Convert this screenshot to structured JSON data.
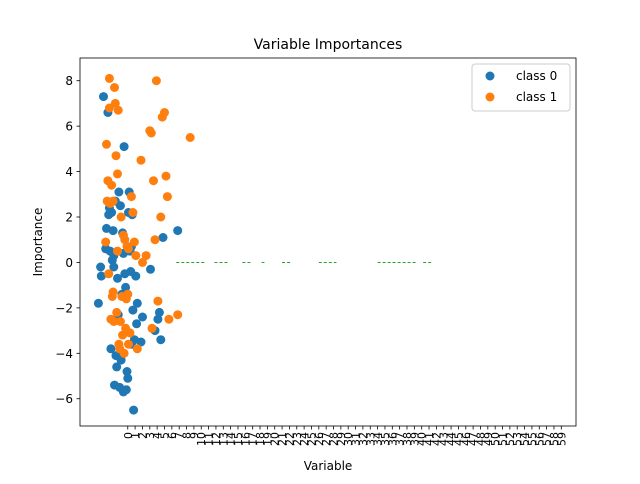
{
  "chart_data": {
    "type": "scatter",
    "title": "Variable Importances",
    "xlabel": "Variable",
    "ylabel": "Importance",
    "xlim": [
      -6.5,
      61
    ],
    "ylim": [
      -7.2,
      9.0
    ],
    "yticks": [
      -6,
      -4,
      -2,
      0,
      2,
      4,
      6,
      8
    ],
    "xticks": [
      "0",
      "1",
      "2",
      "3",
      "4",
      "5",
      "6",
      "7",
      "8",
      "9",
      "10",
      "11",
      "12",
      "13",
      "14",
      "15",
      "16",
      "17",
      "18",
      "19",
      "20",
      "21",
      "22",
      "23",
      "24",
      "25",
      "26",
      "27",
      "28",
      "29",
      "30",
      "31",
      "32",
      "33",
      "34",
      "35",
      "36",
      "37",
      "38",
      "39",
      "40",
      "41",
      "42",
      "43",
      "44",
      "45",
      "46",
      "47",
      "48",
      "49",
      "50",
      "51",
      "52",
      "53",
      "54",
      "55",
      "56",
      "57",
      "58",
      "59"
    ],
    "legend_position": "top-right",
    "colors": {
      "class0": "#1f77b4",
      "class1": "#ff7f0e",
      "zero_marks": "#2ca02c"
    },
    "series": [
      {
        "name": "class 0",
        "points": [
          [
            -4.0,
            -1.8
          ],
          [
            -3.7,
            -0.2
          ],
          [
            -3.6,
            -0.6
          ],
          [
            -3.3,
            7.3
          ],
          [
            -3.0,
            0.6
          ],
          [
            -2.9,
            1.5
          ],
          [
            -2.7,
            6.6
          ],
          [
            -2.6,
            2.1
          ],
          [
            -2.5,
            2.4
          ],
          [
            -2.3,
            -3.8
          ],
          [
            -2.2,
            2.2
          ],
          [
            -2.1,
            0.1
          ],
          [
            -2.0,
            1.4
          ],
          [
            -1.9,
            0.3
          ],
          [
            -1.8,
            -5.4
          ],
          [
            -1.7,
            2.7
          ],
          [
            -1.6,
            -4.1
          ],
          [
            -1.5,
            -4.6
          ],
          [
            -1.4,
            -0.7
          ],
          [
            -1.3,
            -2.3
          ],
          [
            -1.2,
            3.1
          ],
          [
            -1.1,
            -5.5
          ],
          [
            -1.0,
            2.5
          ],
          [
            -0.9,
            -4.3
          ],
          [
            -0.8,
            -1.4
          ],
          [
            -0.7,
            1.3
          ],
          [
            -0.6,
            -5.7
          ],
          [
            -0.5,
            5.1
          ],
          [
            -0.4,
            -0.5
          ],
          [
            -0.3,
            -1.1
          ],
          [
            -0.2,
            -5.6
          ],
          [
            -0.1,
            -4.8
          ],
          [
            0.0,
            -5.1
          ],
          [
            0.1,
            2.2
          ],
          [
            0.2,
            3.1
          ],
          [
            0.3,
            0.5
          ],
          [
            0.4,
            -0.4
          ],
          [
            0.5,
            -3.6
          ],
          [
            0.6,
            2.1
          ],
          [
            0.7,
            -2.1
          ],
          [
            0.8,
            -6.5
          ],
          [
            0.9,
            -3.4
          ],
          [
            1.1,
            -0.6
          ],
          [
            1.2,
            -2.7
          ],
          [
            1.3,
            -1.8
          ],
          [
            1.8,
            -3.5
          ],
          [
            2.0,
            -2.4
          ],
          [
            3.1,
            -0.3
          ],
          [
            3.7,
            -3.0
          ],
          [
            4.1,
            -2.5
          ],
          [
            4.3,
            -2.2
          ],
          [
            4.5,
            -3.4
          ],
          [
            4.8,
            1.1
          ],
          [
            6.8,
            1.4
          ],
          [
            -2.4,
            0.5
          ],
          [
            -1.9,
            -0.2
          ],
          [
            0.5,
            0.7
          ],
          [
            -0.6,
            0.4
          ]
        ]
      },
      {
        "name": "class 1",
        "points": [
          [
            -3.0,
            0.9
          ],
          [
            -2.9,
            5.2
          ],
          [
            -2.8,
            2.7
          ],
          [
            -2.7,
            3.6
          ],
          [
            -2.6,
            -0.5
          ],
          [
            -2.5,
            6.8
          ],
          [
            -2.5,
            8.1
          ],
          [
            -2.4,
            2.6
          ],
          [
            -2.3,
            -2.5
          ],
          [
            -2.2,
            3.4
          ],
          [
            -2.1,
            -1.5
          ],
          [
            -2.0,
            -1.3
          ],
          [
            -1.9,
            -2.6
          ],
          [
            -1.8,
            7.7
          ],
          [
            -1.7,
            7.0
          ],
          [
            -1.6,
            4.7
          ],
          [
            -1.5,
            -2.2
          ],
          [
            -1.4,
            3.9
          ],
          [
            -1.3,
            6.7
          ],
          [
            -1.2,
            -3.6
          ],
          [
            -1.1,
            -3.8
          ],
          [
            -1.0,
            -2.6
          ],
          [
            -0.9,
            2.0
          ],
          [
            -0.8,
            -1.5
          ],
          [
            -0.7,
            -3.2
          ],
          [
            -0.6,
            1.2
          ],
          [
            -0.5,
            -4.0
          ],
          [
            -0.4,
            1.0
          ],
          [
            -0.3,
            -2.9
          ],
          [
            -0.2,
            -1.6
          ],
          [
            -0.1,
            0.7
          ],
          [
            0.0,
            -1.4
          ],
          [
            0.1,
            -3.6
          ],
          [
            0.3,
            -3.1
          ],
          [
            0.5,
            2.9
          ],
          [
            0.7,
            2.2
          ],
          [
            0.9,
            0.9
          ],
          [
            1.1,
            0.3
          ],
          [
            1.3,
            -3.8
          ],
          [
            1.8,
            4.5
          ],
          [
            2.0,
            0.0
          ],
          [
            2.5,
            0.3
          ],
          [
            3.0,
            5.8
          ],
          [
            3.2,
            5.7
          ],
          [
            3.3,
            -2.9
          ],
          [
            3.5,
            3.6
          ],
          [
            3.7,
            1.0
          ],
          [
            3.9,
            8.0
          ],
          [
            4.1,
            -1.7
          ],
          [
            4.5,
            2.0
          ],
          [
            4.7,
            6.4
          ],
          [
            5.0,
            6.6
          ],
          [
            5.2,
            3.8
          ],
          [
            5.4,
            2.9
          ],
          [
            5.6,
            -2.5
          ],
          [
            6.8,
            -2.3
          ],
          [
            8.5,
            5.5
          ],
          [
            -2.0,
            2.7
          ],
          [
            -1.4,
            0.5
          ],
          [
            0.1,
            0.6
          ]
        ]
      }
    ],
    "zero_segments": [
      [
        6.6,
        10.6
      ],
      [
        11.8,
        13.8
      ],
      [
        15.6,
        16.8
      ],
      [
        18.2,
        18.6
      ],
      [
        21.0,
        22.2
      ],
      [
        26.0,
        28.4
      ],
      [
        34.0,
        39.2
      ],
      [
        40.2,
        41.4
      ]
    ]
  }
}
